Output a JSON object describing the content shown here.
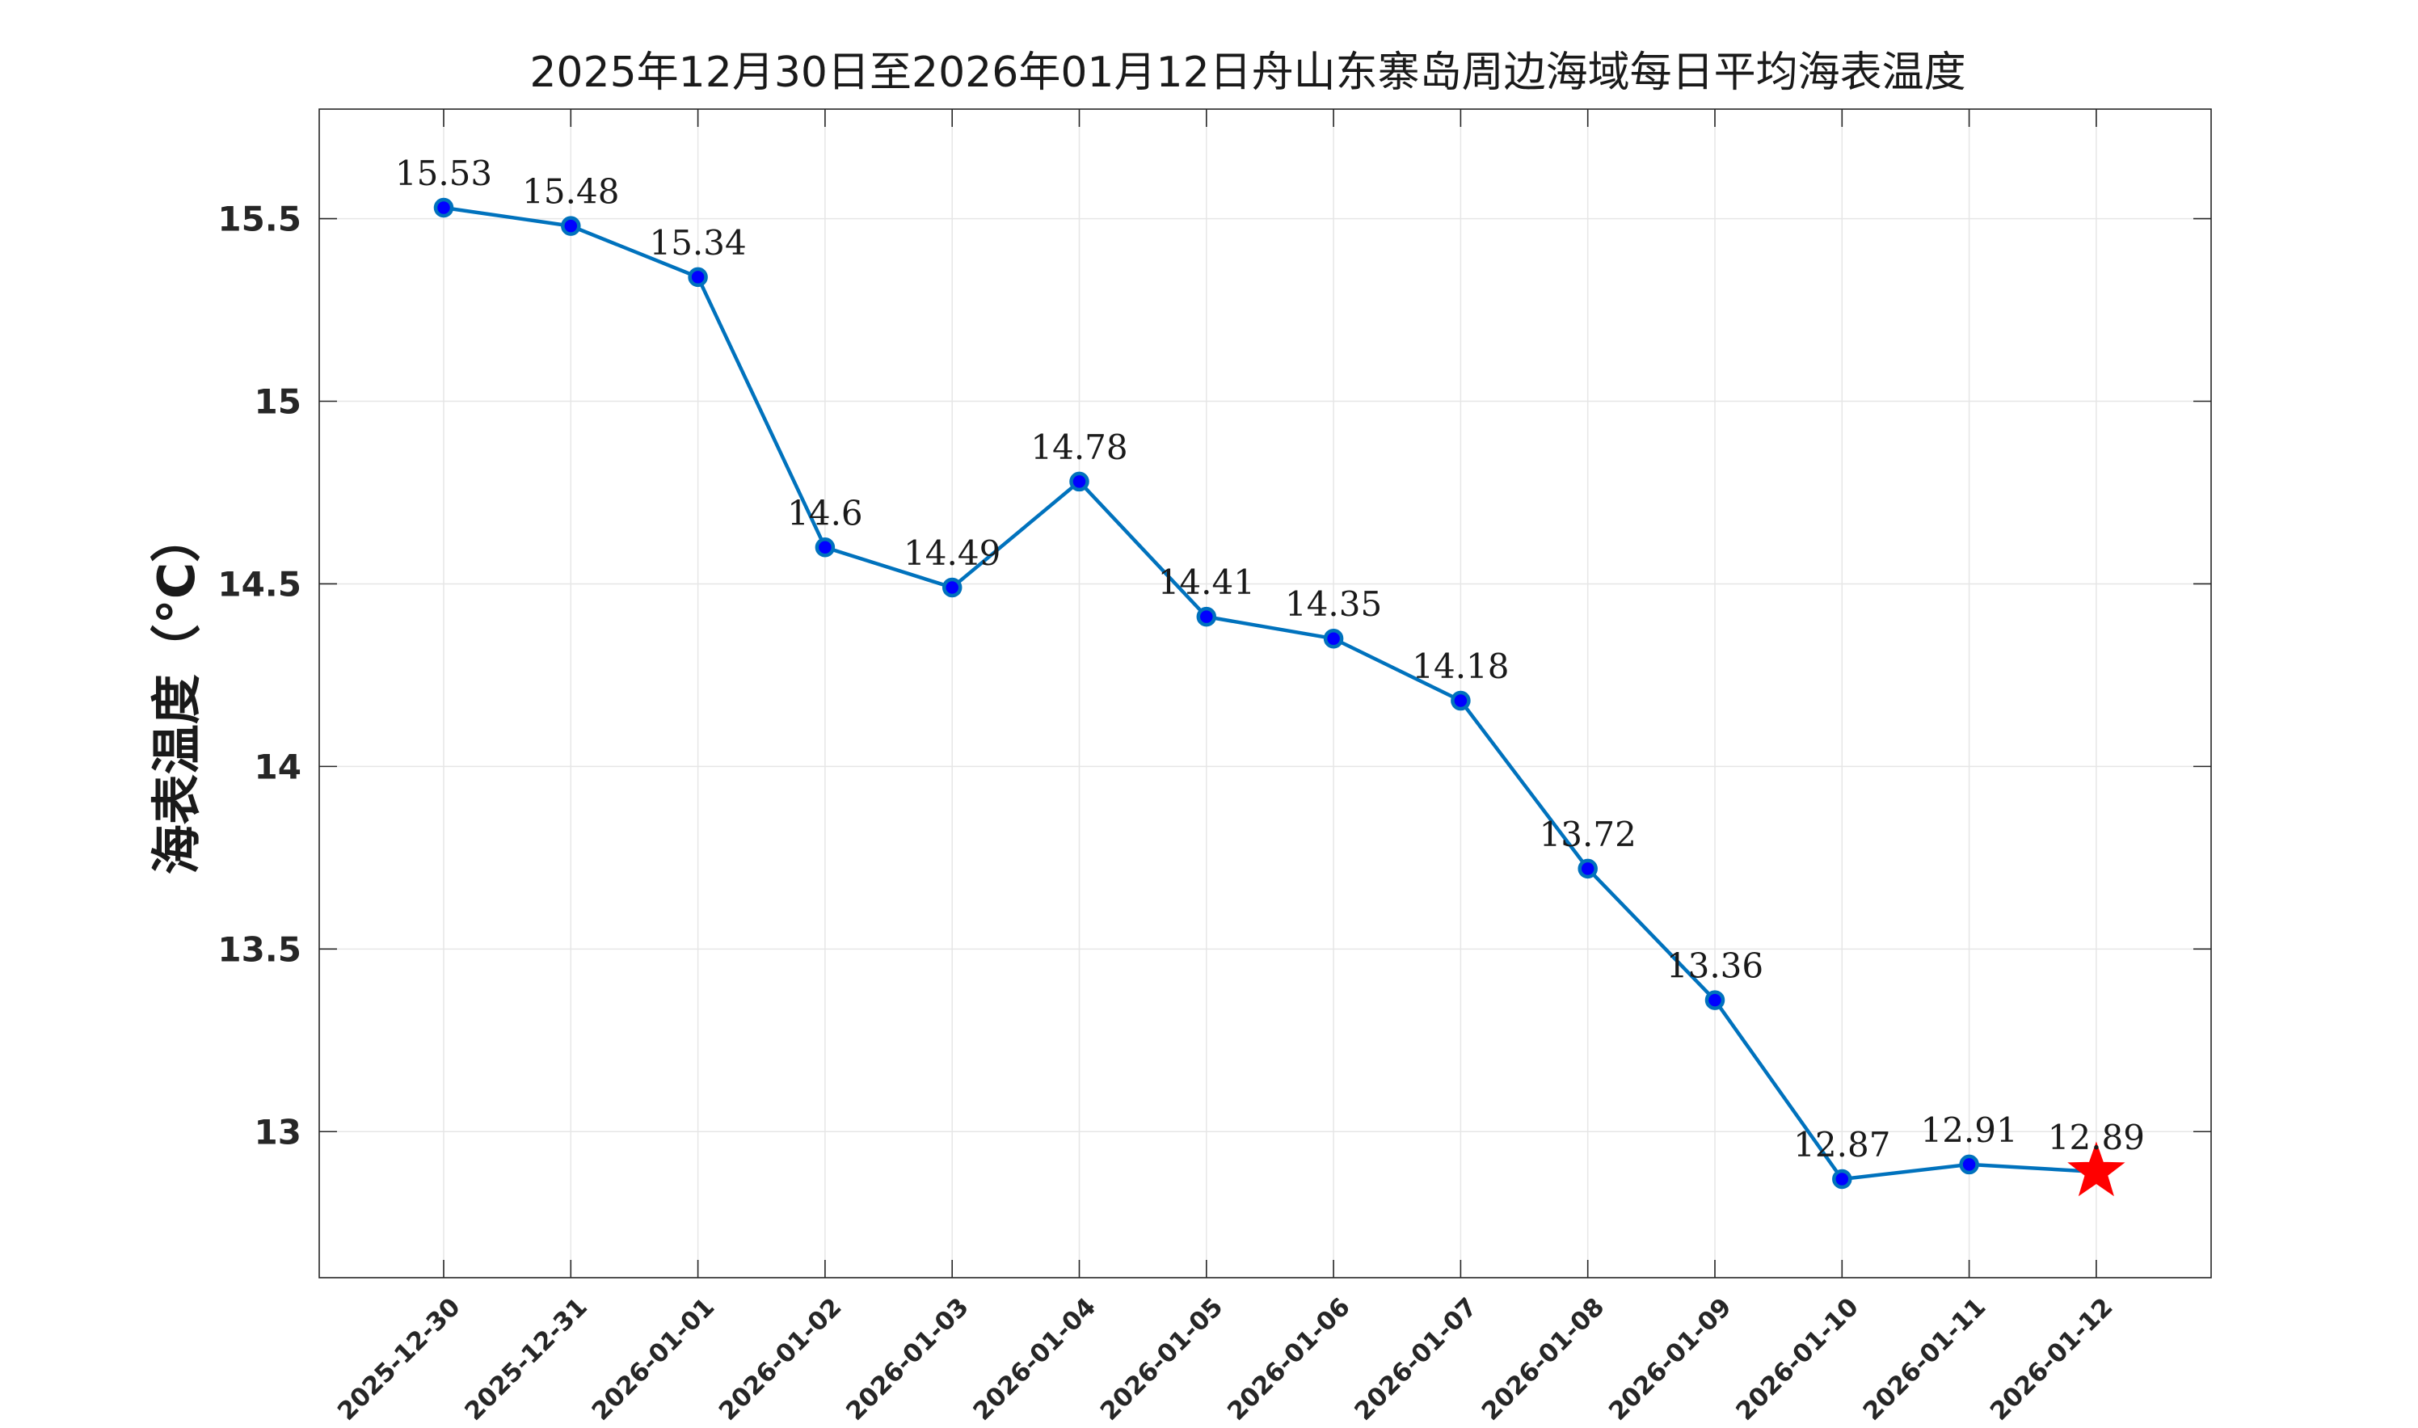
{
  "chart_data": {
    "type": "line",
    "title": "2025年12月30日至2026年01月12日舟山东寨岛周边海域每日平均海表温度",
    "xlabel": "",
    "ylabel": "海表温度（°C）",
    "categories": [
      "2025-12-30",
      "2025-12-31",
      "2026-01-01",
      "2026-01-02",
      "2026-01-03",
      "2026-01-04",
      "2026-01-05",
      "2026-01-06",
      "2026-01-07",
      "2026-01-08",
      "2026-01-09",
      "2026-01-10",
      "2026-01-11",
      "2026-01-12"
    ],
    "series": [
      {
        "values": [
          15.53,
          15.48,
          15.34,
          14.6,
          14.49,
          14.78,
          14.41,
          14.35,
          14.18,
          13.72,
          13.36,
          12.87,
          12.91,
          12.89
        ],
        "data_labels": [
          "15.53",
          "15.48",
          "15.34",
          "14.6",
          "14.49",
          "14.78",
          "14.41",
          "14.35",
          "14.18",
          "13.72",
          "13.36",
          "12.87",
          "12.91",
          "12.89"
        ]
      }
    ],
    "ylim": [
      12.6,
      15.8
    ],
    "yticks": [
      13,
      13.5,
      14,
      14.5,
      15,
      15.5
    ],
    "ytick_labels": [
      "13",
      "13.5",
      "14",
      "14.5",
      "15",
      "15.5"
    ],
    "grid": true,
    "legend": "none",
    "highlight": {
      "index": 13,
      "marker": "star",
      "color": "#ff0000"
    },
    "colors": {
      "line": "#0072bd",
      "marker_fill": "#0000ff",
      "marker_edge": "#0072bd"
    }
  }
}
